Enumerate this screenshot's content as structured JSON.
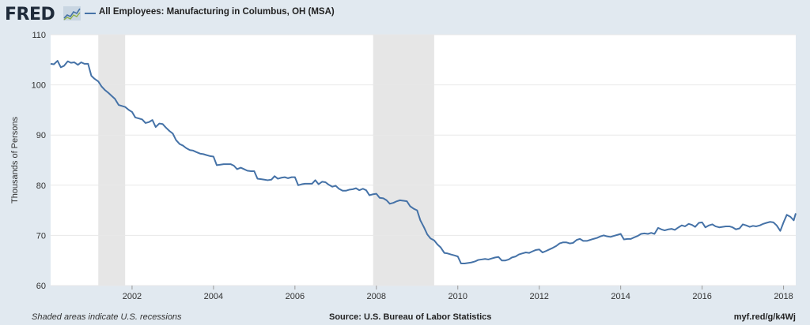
{
  "header": {
    "logo_text": "FRED",
    "series_title": "All Employees: Manufacturing in Columbus, OH (MSA)",
    "line_color": "#4572a7"
  },
  "footer": {
    "note": "Shaded areas indicate U.S. recessions",
    "source": "Source: U.S. Bureau of Labor Statistics",
    "link": "myf.red/g/k4Wj"
  },
  "chart_data": {
    "type": "line",
    "title": "All Employees: Manufacturing in Columbus, OH (MSA)",
    "xlabel": "",
    "ylabel": "Thousands of Persons",
    "xlim": [
      2000.0,
      2018.3
    ],
    "ylim": [
      60,
      110
    ],
    "x_ticks": [
      2002,
      2004,
      2006,
      2008,
      2010,
      2012,
      2014,
      2016,
      2018
    ],
    "y_ticks": [
      60,
      70,
      80,
      90,
      100,
      110
    ],
    "grid": true,
    "recessions": [
      [
        2001.17,
        2001.83
      ],
      [
        2007.92,
        2009.42
      ]
    ],
    "series": [
      {
        "color": "#4572a7",
        "points": [
          [
            2000.0,
            104.2
          ],
          [
            2000.08,
            104.1
          ],
          [
            2000.17,
            104.8
          ],
          [
            2000.25,
            103.5
          ],
          [
            2000.33,
            103.8
          ],
          [
            2000.42,
            104.7
          ],
          [
            2000.5,
            104.4
          ],
          [
            2000.58,
            104.5
          ],
          [
            2000.67,
            104.0
          ],
          [
            2000.75,
            104.5
          ],
          [
            2000.83,
            104.2
          ],
          [
            2000.92,
            104.2
          ],
          [
            2001.0,
            101.8
          ],
          [
            2001.08,
            101.2
          ],
          [
            2001.17,
            100.7
          ],
          [
            2001.25,
            99.7
          ],
          [
            2001.33,
            99.0
          ],
          [
            2001.42,
            98.4
          ],
          [
            2001.5,
            97.8
          ],
          [
            2001.58,
            97.2
          ],
          [
            2001.67,
            96.0
          ],
          [
            2001.75,
            95.8
          ],
          [
            2001.83,
            95.6
          ],
          [
            2001.92,
            95.0
          ],
          [
            2002.0,
            94.6
          ],
          [
            2002.08,
            93.5
          ],
          [
            2002.17,
            93.3
          ],
          [
            2002.25,
            93.1
          ],
          [
            2002.33,
            92.4
          ],
          [
            2002.42,
            92.6
          ],
          [
            2002.5,
            93.0
          ],
          [
            2002.58,
            91.6
          ],
          [
            2002.67,
            92.3
          ],
          [
            2002.75,
            92.2
          ],
          [
            2002.83,
            91.5
          ],
          [
            2002.92,
            90.8
          ],
          [
            2003.0,
            90.3
          ],
          [
            2003.08,
            89.0
          ],
          [
            2003.17,
            88.2
          ],
          [
            2003.25,
            87.9
          ],
          [
            2003.33,
            87.4
          ],
          [
            2003.42,
            87.0
          ],
          [
            2003.5,
            86.9
          ],
          [
            2003.58,
            86.6
          ],
          [
            2003.67,
            86.3
          ],
          [
            2003.75,
            86.2
          ],
          [
            2003.83,
            86.0
          ],
          [
            2003.92,
            85.8
          ],
          [
            2004.0,
            85.7
          ],
          [
            2004.08,
            84.0
          ],
          [
            2004.17,
            84.1
          ],
          [
            2004.25,
            84.2
          ],
          [
            2004.33,
            84.2
          ],
          [
            2004.42,
            84.2
          ],
          [
            2004.5,
            83.9
          ],
          [
            2004.58,
            83.2
          ],
          [
            2004.67,
            83.5
          ],
          [
            2004.75,
            83.2
          ],
          [
            2004.83,
            82.9
          ],
          [
            2004.92,
            82.8
          ],
          [
            2005.0,
            82.8
          ],
          [
            2005.08,
            81.3
          ],
          [
            2005.17,
            81.2
          ],
          [
            2005.25,
            81.1
          ],
          [
            2005.33,
            81.0
          ],
          [
            2005.42,
            81.1
          ],
          [
            2005.5,
            81.8
          ],
          [
            2005.58,
            81.3
          ],
          [
            2005.67,
            81.5
          ],
          [
            2005.75,
            81.6
          ],
          [
            2005.83,
            81.4
          ],
          [
            2005.92,
            81.6
          ],
          [
            2006.0,
            81.6
          ],
          [
            2006.08,
            80.0
          ],
          [
            2006.17,
            80.2
          ],
          [
            2006.25,
            80.3
          ],
          [
            2006.33,
            80.3
          ],
          [
            2006.42,
            80.3
          ],
          [
            2006.5,
            81.0
          ],
          [
            2006.58,
            80.2
          ],
          [
            2006.67,
            80.7
          ],
          [
            2006.75,
            80.6
          ],
          [
            2006.83,
            80.1
          ],
          [
            2006.92,
            79.7
          ],
          [
            2007.0,
            79.9
          ],
          [
            2007.08,
            79.3
          ],
          [
            2007.17,
            78.9
          ],
          [
            2007.25,
            78.9
          ],
          [
            2007.33,
            79.1
          ],
          [
            2007.42,
            79.2
          ],
          [
            2007.5,
            79.4
          ],
          [
            2007.58,
            79.0
          ],
          [
            2007.67,
            79.3
          ],
          [
            2007.75,
            79.0
          ],
          [
            2007.83,
            78.0
          ],
          [
            2007.92,
            78.2
          ],
          [
            2008.0,
            78.3
          ],
          [
            2008.08,
            77.5
          ],
          [
            2008.17,
            77.4
          ],
          [
            2008.25,
            77.0
          ],
          [
            2008.33,
            76.3
          ],
          [
            2008.42,
            76.5
          ],
          [
            2008.5,
            76.8
          ],
          [
            2008.58,
            77.0
          ],
          [
            2008.67,
            76.9
          ],
          [
            2008.75,
            76.8
          ],
          [
            2008.83,
            75.8
          ],
          [
            2008.92,
            75.3
          ],
          [
            2009.0,
            75.0
          ],
          [
            2009.08,
            73.0
          ],
          [
            2009.17,
            71.6
          ],
          [
            2009.25,
            70.2
          ],
          [
            2009.33,
            69.4
          ],
          [
            2009.42,
            69.0
          ],
          [
            2009.5,
            68.2
          ],
          [
            2009.58,
            67.6
          ],
          [
            2009.67,
            66.5
          ],
          [
            2009.75,
            66.4
          ],
          [
            2009.83,
            66.2
          ],
          [
            2009.92,
            66.0
          ],
          [
            2010.0,
            65.8
          ],
          [
            2010.08,
            64.4
          ],
          [
            2010.17,
            64.4
          ],
          [
            2010.25,
            64.5
          ],
          [
            2010.33,
            64.6
          ],
          [
            2010.42,
            64.8
          ],
          [
            2010.5,
            65.1
          ],
          [
            2010.58,
            65.2
          ],
          [
            2010.67,
            65.3
          ],
          [
            2010.75,
            65.2
          ],
          [
            2010.83,
            65.4
          ],
          [
            2010.92,
            65.6
          ],
          [
            2011.0,
            65.7
          ],
          [
            2011.08,
            65.0
          ],
          [
            2011.17,
            65.0
          ],
          [
            2011.25,
            65.2
          ],
          [
            2011.33,
            65.6
          ],
          [
            2011.42,
            65.8
          ],
          [
            2011.5,
            66.2
          ],
          [
            2011.58,
            66.4
          ],
          [
            2011.67,
            66.6
          ],
          [
            2011.75,
            66.5
          ],
          [
            2011.83,
            66.8
          ],
          [
            2011.92,
            67.1
          ],
          [
            2012.0,
            67.2
          ],
          [
            2012.08,
            66.6
          ],
          [
            2012.17,
            66.9
          ],
          [
            2012.25,
            67.2
          ],
          [
            2012.33,
            67.5
          ],
          [
            2012.42,
            67.9
          ],
          [
            2012.5,
            68.4
          ],
          [
            2012.58,
            68.6
          ],
          [
            2012.67,
            68.6
          ],
          [
            2012.75,
            68.4
          ],
          [
            2012.83,
            68.5
          ],
          [
            2012.92,
            69.1
          ],
          [
            2013.0,
            69.3
          ],
          [
            2013.08,
            68.9
          ],
          [
            2013.17,
            68.9
          ],
          [
            2013.25,
            69.1
          ],
          [
            2013.33,
            69.3
          ],
          [
            2013.42,
            69.5
          ],
          [
            2013.5,
            69.8
          ],
          [
            2013.58,
            70.0
          ],
          [
            2013.67,
            69.8
          ],
          [
            2013.75,
            69.7
          ],
          [
            2013.83,
            69.9
          ],
          [
            2013.92,
            70.1
          ],
          [
            2014.0,
            70.3
          ],
          [
            2014.08,
            69.2
          ],
          [
            2014.17,
            69.3
          ],
          [
            2014.25,
            69.3
          ],
          [
            2014.33,
            69.6
          ],
          [
            2014.42,
            69.9
          ],
          [
            2014.5,
            70.3
          ],
          [
            2014.58,
            70.4
          ],
          [
            2014.67,
            70.3
          ],
          [
            2014.75,
            70.5
          ],
          [
            2014.83,
            70.3
          ],
          [
            2014.92,
            71.5
          ],
          [
            2015.0,
            71.2
          ],
          [
            2015.08,
            71.0
          ],
          [
            2015.17,
            71.2
          ],
          [
            2015.25,
            71.3
          ],
          [
            2015.33,
            71.1
          ],
          [
            2015.42,
            71.6
          ],
          [
            2015.5,
            72.0
          ],
          [
            2015.58,
            71.8
          ],
          [
            2015.67,
            72.3
          ],
          [
            2015.75,
            72.1
          ],
          [
            2015.83,
            71.7
          ],
          [
            2015.92,
            72.5
          ],
          [
            2016.0,
            72.6
          ],
          [
            2016.08,
            71.6
          ],
          [
            2016.17,
            72.0
          ],
          [
            2016.25,
            72.2
          ],
          [
            2016.33,
            71.8
          ],
          [
            2016.42,
            71.6
          ],
          [
            2016.5,
            71.7
          ],
          [
            2016.58,
            71.8
          ],
          [
            2016.67,
            71.8
          ],
          [
            2016.75,
            71.6
          ],
          [
            2016.83,
            71.2
          ],
          [
            2016.92,
            71.4
          ],
          [
            2017.0,
            72.2
          ],
          [
            2017.08,
            72.0
          ],
          [
            2017.17,
            71.7
          ],
          [
            2017.25,
            71.9
          ],
          [
            2017.33,
            71.8
          ],
          [
            2017.42,
            72.0
          ],
          [
            2017.5,
            72.3
          ],
          [
            2017.58,
            72.5
          ],
          [
            2017.67,
            72.7
          ],
          [
            2017.75,
            72.6
          ],
          [
            2017.83,
            72.0
          ],
          [
            2017.92,
            70.9
          ],
          [
            2018.0,
            72.6
          ],
          [
            2018.08,
            74.1
          ],
          [
            2018.17,
            73.7
          ],
          [
            2018.25,
            73.0
          ],
          [
            2018.3,
            74.4
          ]
        ]
      }
    ]
  }
}
